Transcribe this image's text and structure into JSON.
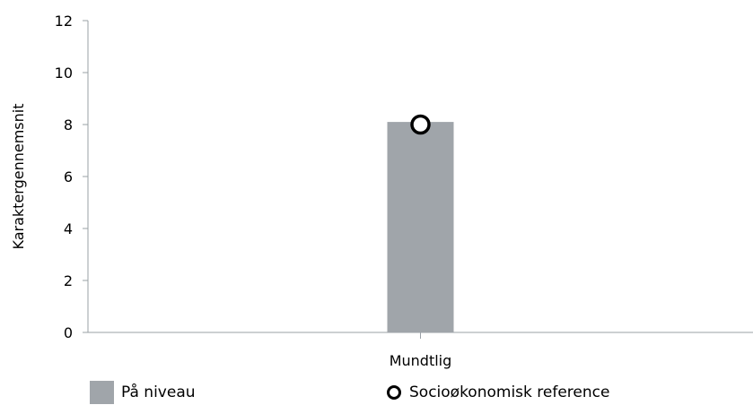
{
  "chart_data": {
    "type": "bar",
    "categories": [
      "Mundtlig"
    ],
    "series": [
      {
        "name": "På niveau",
        "kind": "bar",
        "values": [
          8.1
        ],
        "color": "#a0a5aa"
      },
      {
        "name": "Socioøkonomisk reference",
        "kind": "marker",
        "values": [
          8.0
        ],
        "color": "#000000"
      }
    ],
    "ylabel": "Karaktergennemsnit",
    "xlabel": "",
    "ylim": [
      0,
      12
    ],
    "yticks": [
      "0",
      "2",
      "4",
      "6",
      "8",
      "10",
      "12"
    ],
    "grid": false,
    "legend_position": "bottom"
  },
  "legend": {
    "bar_label": "På niveau",
    "marker_label": "Socioøkonomisk reference"
  }
}
